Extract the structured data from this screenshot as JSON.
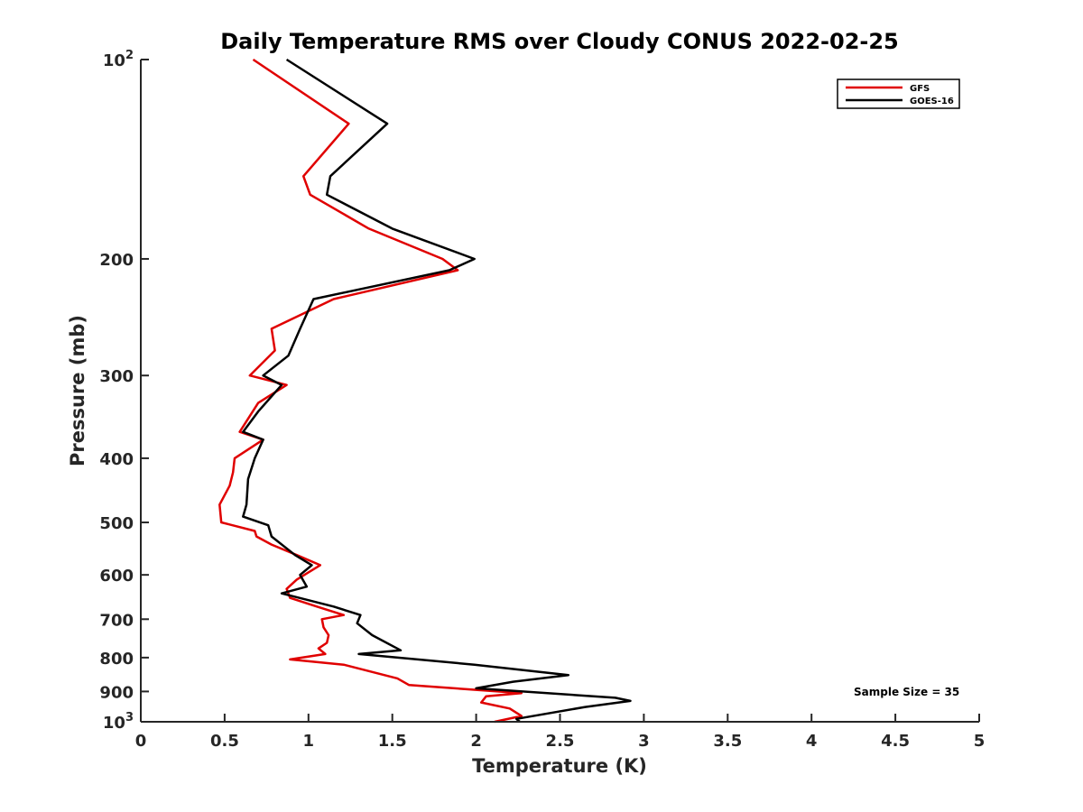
{
  "chart_data": {
    "type": "line",
    "title": "Daily Temperature RMS over Cloudy CONUS 2022-02-25",
    "xlabel": "Temperature (K)",
    "ylabel": "Pressure (mb)",
    "xlim": [
      0,
      5
    ],
    "ylim": [
      100,
      1000
    ],
    "y_scale": "log",
    "y_reversed": true,
    "grid": false,
    "legend_position": "top-right",
    "x_ticks": [
      {
        "value": 0,
        "label": "0"
      },
      {
        "value": 0.5,
        "label": "0.5"
      },
      {
        "value": 1,
        "label": "1"
      },
      {
        "value": 1.5,
        "label": "1.5"
      },
      {
        "value": 2,
        "label": "2"
      },
      {
        "value": 2.5,
        "label": "2.5"
      },
      {
        "value": 3,
        "label": "3"
      },
      {
        "value": 3.5,
        "label": "3.5"
      },
      {
        "value": 4,
        "label": "4"
      },
      {
        "value": 4.5,
        "label": "4.5"
      },
      {
        "value": 5,
        "label": "5"
      }
    ],
    "y_ticks": [
      {
        "value": 100,
        "base": "10",
        "exp": "2"
      },
      {
        "value": 200,
        "label": "200"
      },
      {
        "value": 300,
        "label": "300"
      },
      {
        "value": 400,
        "label": "400"
      },
      {
        "value": 500,
        "label": "500"
      },
      {
        "value": 600,
        "label": "600"
      },
      {
        "value": 700,
        "label": "700"
      },
      {
        "value": 800,
        "label": "800"
      },
      {
        "value": 900,
        "label": "900"
      },
      {
        "value": 1000,
        "base": "10",
        "exp": "3"
      }
    ],
    "series": [
      {
        "name": "GFS",
        "color": "#e00000",
        "points": [
          [
            0.67,
            100
          ],
          [
            1.24,
            125
          ],
          [
            0.97,
            150
          ],
          [
            1.01,
            160
          ],
          [
            1.36,
            180
          ],
          [
            1.8,
            200
          ],
          [
            1.89,
            208
          ],
          [
            1.15,
            230
          ],
          [
            0.78,
            255
          ],
          [
            0.8,
            275
          ],
          [
            0.65,
            300
          ],
          [
            0.87,
            310
          ],
          [
            0.7,
            330
          ],
          [
            0.59,
            365
          ],
          [
            0.73,
            375
          ],
          [
            0.56,
            400
          ],
          [
            0.55,
            420
          ],
          [
            0.53,
            440
          ],
          [
            0.47,
            470
          ],
          [
            0.48,
            500
          ],
          [
            0.68,
            515
          ],
          [
            0.69,
            525
          ],
          [
            0.78,
            540
          ],
          [
            0.93,
            560
          ],
          [
            1.07,
            580
          ],
          [
            0.93,
            610
          ],
          [
            0.87,
            630
          ],
          [
            0.89,
            650
          ],
          [
            1.05,
            670
          ],
          [
            1.21,
            690
          ],
          [
            1.08,
            700
          ],
          [
            1.09,
            720
          ],
          [
            1.12,
            740
          ],
          [
            1.11,
            760
          ],
          [
            1.06,
            775
          ],
          [
            1.1,
            790
          ],
          [
            0.89,
            805
          ],
          [
            1.21,
            820
          ],
          [
            1.53,
            860
          ],
          [
            1.6,
            880
          ],
          [
            2.27,
            905
          ],
          [
            2.06,
            915
          ],
          [
            2.03,
            935
          ],
          [
            2.2,
            955
          ],
          [
            2.27,
            980
          ],
          [
            2.11,
            1000
          ]
        ]
      },
      {
        "name": "GOES-16",
        "color": "#000000",
        "points": [
          [
            0.87,
            100
          ],
          [
            1.47,
            125
          ],
          [
            1.13,
            150
          ],
          [
            1.11,
            160
          ],
          [
            1.5,
            180
          ],
          [
            1.99,
            200
          ],
          [
            1.84,
            208
          ],
          [
            1.03,
            230
          ],
          [
            0.95,
            255
          ],
          [
            0.88,
            280
          ],
          [
            0.73,
            300
          ],
          [
            0.84,
            310
          ],
          [
            0.7,
            340
          ],
          [
            0.61,
            365
          ],
          [
            0.73,
            375
          ],
          [
            0.68,
            400
          ],
          [
            0.64,
            430
          ],
          [
            0.63,
            470
          ],
          [
            0.61,
            490
          ],
          [
            0.76,
            505
          ],
          [
            0.78,
            525
          ],
          [
            0.92,
            560
          ],
          [
            1.02,
            580
          ],
          [
            0.95,
            600
          ],
          [
            0.99,
            625
          ],
          [
            0.84,
            640
          ],
          [
            1.15,
            670
          ],
          [
            1.31,
            690
          ],
          [
            1.29,
            710
          ],
          [
            1.38,
            740
          ],
          [
            1.55,
            780
          ],
          [
            1.3,
            790
          ],
          [
            1.99,
            820
          ],
          [
            2.55,
            850
          ],
          [
            2.22,
            870
          ],
          [
            2.0,
            890
          ],
          [
            2.83,
            920
          ],
          [
            2.92,
            930
          ],
          [
            2.65,
            950
          ],
          [
            2.24,
            990
          ],
          [
            2.26,
            1000
          ]
        ]
      }
    ],
    "annotation": "Sample Size = 35"
  }
}
